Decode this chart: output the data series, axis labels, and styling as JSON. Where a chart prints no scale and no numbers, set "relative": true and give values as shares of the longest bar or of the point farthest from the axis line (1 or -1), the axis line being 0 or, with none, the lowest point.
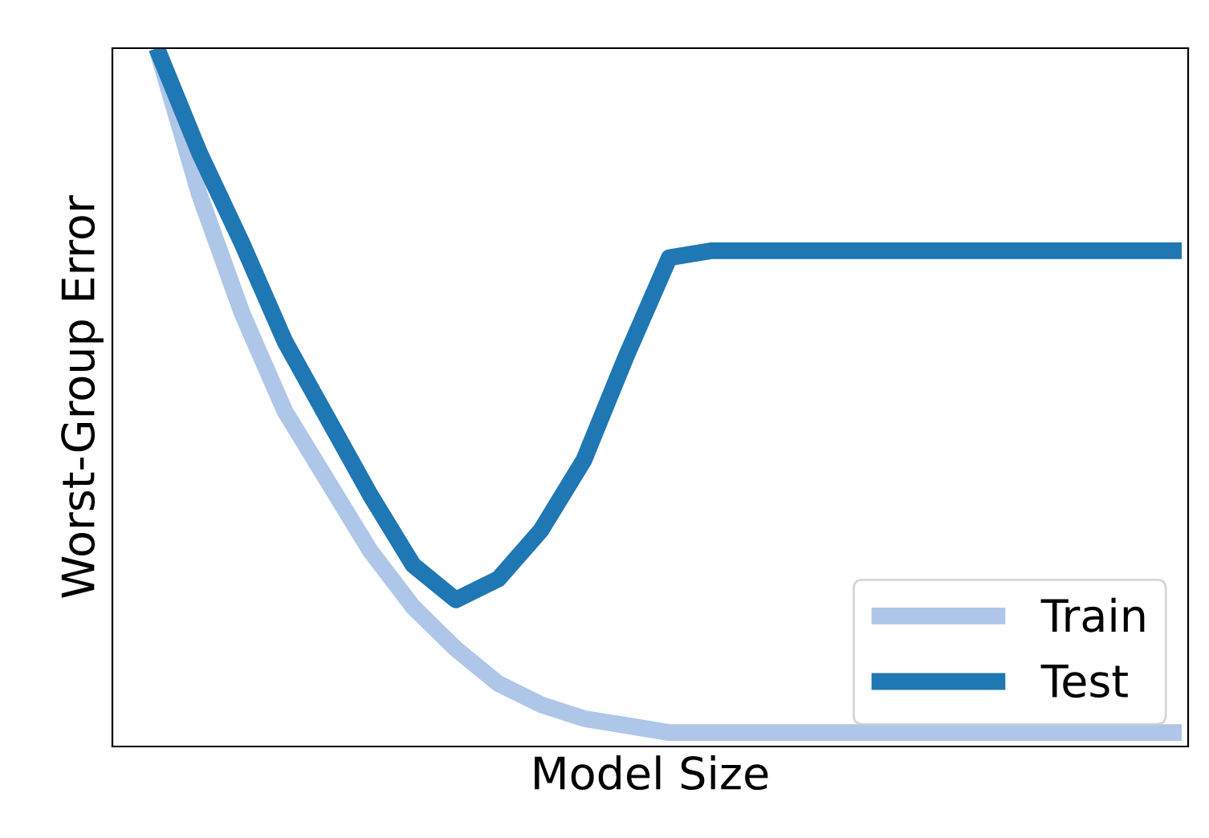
{
  "chart_data": {
    "type": "line",
    "relative": true,
    "xlabel": "Model Size",
    "ylabel": "Worst-Group Error",
    "categories": [
      null,
      null,
      null,
      null,
      null,
      null,
      null,
      null,
      null,
      null,
      null,
      null,
      null,
      null,
      null,
      null,
      null,
      null,
      null,
      null,
      null,
      null,
      null,
      null,
      null
    ],
    "series": [
      {
        "name": "Train",
        "color": "#aec7e8",
        "values": [
          1.0,
          0.79,
          0.62,
          0.48,
          0.38,
          0.28,
          0.2,
          0.14,
          0.09,
          0.06,
          0.04,
          0.03,
          0.02,
          0.02,
          0.02,
          0.02,
          0.02,
          0.02,
          0.02,
          0.02,
          0.02,
          0.02,
          0.02,
          0.02,
          0.02
        ]
      },
      {
        "name": "Test",
        "color": "#1f77b4",
        "values": [
          1.0,
          0.85,
          0.72,
          0.58,
          0.47,
          0.36,
          0.26,
          0.21,
          0.24,
          0.31,
          0.41,
          0.56,
          0.7,
          0.71,
          0.71,
          0.71,
          0.71,
          0.71,
          0.71,
          0.71,
          0.71,
          0.71,
          0.71,
          0.71,
          0.71
        ]
      }
    ],
    "legend": "bottom right",
    "marker": "none",
    "line_style": "solid"
  }
}
